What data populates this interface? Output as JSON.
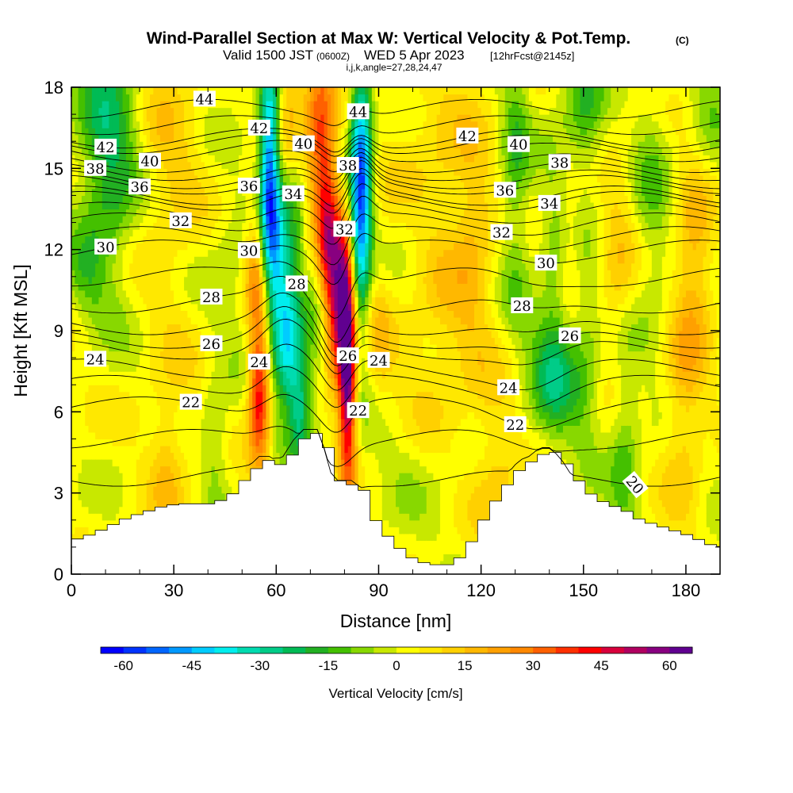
{
  "title": {
    "main": "Wind-Parallel Section at Max W: Vertical Velocity & Pot.Temp.",
    "copyright": "(C)",
    "valid": "Valid 1500 JST",
    "utc": "(0600Z)",
    "date": "WED 5 Apr 2023",
    "fcst": "[12hrFcst@2145z]",
    "indices": "i,j,k,angle=27,28,24,47"
  },
  "chart_data": {
    "type": "heatmap",
    "xlabel": "Distance [nm]",
    "ylabel": "Height [Kft MSL]",
    "xlim": [
      0,
      190
    ],
    "ylim": [
      0,
      18
    ],
    "x_ticks": [
      "0",
      "30",
      "60",
      "90",
      "120",
      "150",
      "180"
    ],
    "y_ticks": [
      "0",
      "3",
      "6",
      "9",
      "12",
      "15",
      "18"
    ],
    "colorbar": {
      "label": "Vertical Velocity [cm/s]",
      "range": [
        -65,
        65
      ],
      "step": 5,
      "tick_labels": [
        "-60",
        "-45",
        "-30",
        "-15",
        "0",
        "15",
        "30",
        "45",
        "60"
      ]
    },
    "fill_colors": [
      "#0000ff",
      "#0033ff",
      "#0066ff",
      "#0099ff",
      "#00ccff",
      "#00eeee",
      "#00dbb0",
      "#00cc88",
      "#00bb55",
      "#22b022",
      "#44c000",
      "#88d800",
      "#c8e800",
      "#ffff00",
      "#ffe800",
      "#ffd000",
      "#ffb800",
      "#ffa000",
      "#ff8800",
      "#ff6000",
      "#ff3000",
      "#ff0000",
      "#d8003c",
      "#b00060",
      "#880080",
      "#600090"
    ],
    "series": [
      {
        "name": "Vertical Velocity",
        "units": "cm/s"
      },
      {
        "name": "Pot.Temp.",
        "contour_labels": [
          "44",
          "42",
          "40",
          "38",
          "36",
          "34",
          "32",
          "30",
          "28",
          "26",
          "24",
          "22",
          "20"
        ]
      }
    ],
    "terrain_kft": {
      "x": [
        0,
        5,
        10,
        15,
        20,
        25,
        30,
        35,
        40,
        45,
        50,
        55,
        58,
        60,
        62,
        65,
        68,
        70,
        72,
        74,
        76,
        78,
        80,
        82,
        84,
        86,
        88,
        90,
        92,
        94,
        96,
        98,
        100,
        102,
        104,
        106,
        108,
        110,
        112,
        114,
        116,
        118,
        120,
        122,
        124,
        126,
        128,
        130,
        132,
        134,
        136,
        138,
        140,
        142,
        144,
        146,
        148,
        150,
        155,
        160,
        165,
        170,
        175,
        180,
        185,
        190
      ],
      "y": [
        1.3,
        1.5,
        1.8,
        2.1,
        2.3,
        2.5,
        2.6,
        2.6,
        2.6,
        2.9,
        3.6,
        4.2,
        4.2,
        4.0,
        4.2,
        4.8,
        5.2,
        5.2,
        5.2,
        4.5,
        3.6,
        3.3,
        3.3,
        3.3,
        3.1,
        2.5,
        1.8,
        1.5,
        1.3,
        1.0,
        0.8,
        0.6,
        0.5,
        0.4,
        0.35,
        0.35,
        0.35,
        0.35,
        0.6,
        0.9,
        1.3,
        1.8,
        2.2,
        2.6,
        3.0,
        3.3,
        3.6,
        3.9,
        4.1,
        4.2,
        4.4,
        4.5,
        4.5,
        4.3,
        4.0,
        3.6,
        3.3,
        3.0,
        2.6,
        2.4,
        2.0,
        1.8,
        1.6,
        1.4,
        1.1,
        1.0
      ]
    },
    "theta_levels": [
      {
        "value": "20",
        "y0": 3.6,
        "label_x": 165,
        "label_rot": 50
      },
      {
        "value": "21",
        "y0": 5.0
      },
      {
        "value": "22",
        "y0": 6.2,
        "label_x": 35,
        "label_x2": 84,
        "label_x3": 130
      },
      {
        "value": "23",
        "y0": 7.0
      },
      {
        "value": "24",
        "y0": 7.6,
        "label_x": 7,
        "label_x2": 55,
        "label_x3": 90,
        "label_x4": 128
      },
      {
        "value": "25",
        "y0": 8.3
      },
      {
        "value": "26",
        "y0": 8.7,
        "label_x": 41,
        "label_x2": 81,
        "label_x3": 146
      },
      {
        "value": "27",
        "y0": 9.2
      },
      {
        "value": "28",
        "y0": 10.0,
        "label_x": 41,
        "label_x2": 66,
        "label_x3": 132
      },
      {
        "value": "29",
        "y0": 11.0
      },
      {
        "value": "30",
        "y0": 12.0,
        "label_x": 10,
        "label_x2": 52,
        "label_x3": 139
      },
      {
        "value": "31",
        "y0": 12.5
      },
      {
        "value": "32",
        "y0": 13.0,
        "label_x": 32,
        "label_x2": 80,
        "label_x3": 126
      },
      {
        "value": "33",
        "y0": 13.4
      },
      {
        "value": "34",
        "y0": 13.8,
        "label_x": 65,
        "label_x2": 140
      },
      {
        "value": "35",
        "y0": 14.0
      },
      {
        "value": "36",
        "y0": 14.4,
        "label_x": 20,
        "label_x2": 52,
        "label_x3": 127
      },
      {
        "value": "37",
        "y0": 14.6
      },
      {
        "value": "38",
        "y0": 14.9,
        "label_x": 7,
        "label_x2": 81,
        "label_x3": 143
      },
      {
        "value": "39",
        "y0": 15.2
      },
      {
        "value": "40",
        "y0": 15.6,
        "label_x": 23,
        "label_x2": 68,
        "label_x3": 131
      },
      {
        "value": "41",
        "y0": 15.9
      },
      {
        "value": "42",
        "y0": 16.1,
        "label_x": 10,
        "label_x2": 55,
        "label_x3": 116
      },
      {
        "value": "43",
        "y0": 16.6
      },
      {
        "value": "44",
        "y0": 17.2,
        "label_x": 39,
        "label_x2": 84
      }
    ],
    "w_field": {
      "background": 2,
      "features": [
        {
          "x": 4,
          "z": 10.8,
          "sx": 4,
          "sz": 1.2,
          "w": -10
        },
        {
          "x": 10,
          "z": 14,
          "sx": 6,
          "sz": 4,
          "w": -12
        },
        {
          "x": 12,
          "z": 16.5,
          "sx": 7,
          "sz": 2.5,
          "w": -15
        },
        {
          "x": 5,
          "z": 7.5,
          "sx": 6,
          "sz": 3,
          "w": 3
        },
        {
          "x": 28,
          "z": 16,
          "sx": 7,
          "sz": 3,
          "w": 10
        },
        {
          "x": 30,
          "z": 7,
          "sx": 8,
          "sz": 5,
          "w": 5
        },
        {
          "x": 42,
          "z": 4.8,
          "sx": 3,
          "sz": 1.6,
          "w": -12
        },
        {
          "x": 28,
          "z": 4,
          "sx": 3,
          "sz": 1.5,
          "w": 10
        },
        {
          "x": 50,
          "z": 11,
          "sx": 8,
          "sz": 2,
          "w": -8
        },
        {
          "x": 55,
          "z": 6.8,
          "sx": 2.2,
          "sz": 2,
          "w": 45
        },
        {
          "x": 54,
          "z": 11.5,
          "sx": 2.5,
          "sz": 1.5,
          "w": 25
        },
        {
          "x": 58,
          "z": 15,
          "sx": 2,
          "sz": 3,
          "w": -55
        },
        {
          "x": 61,
          "z": 11,
          "sx": 2.5,
          "sz": 3,
          "w": -25
        },
        {
          "x": 64,
          "z": 8.5,
          "sx": 2.8,
          "sz": 1.6,
          "w": -30
        },
        {
          "x": 67,
          "z": 6.2,
          "sx": 2.4,
          "sz": 1.4,
          "w": -28
        },
        {
          "x": 66,
          "z": 14,
          "sx": 3,
          "sz": 2,
          "w": -18
        },
        {
          "x": 64,
          "z": 17,
          "sx": 3,
          "sz": 2,
          "w": 20
        },
        {
          "x": 73,
          "z": 10.5,
          "sx": 2.5,
          "sz": 3,
          "w": -22
        },
        {
          "x": 75,
          "z": 12,
          "sx": 2.5,
          "sz": 3,
          "w": 45
        },
        {
          "x": 72,
          "z": 16,
          "sx": 3,
          "sz": 3,
          "w": 30
        },
        {
          "x": 81,
          "z": 7.5,
          "sx": 1.8,
          "sz": 3,
          "w": 60
        },
        {
          "x": 79,
          "z": 10,
          "sx": 2.4,
          "sz": 2,
          "w": 40
        },
        {
          "x": 85,
          "z": 15,
          "sx": 2.2,
          "sz": 3,
          "w": -50
        },
        {
          "x": 84,
          "z": 11.5,
          "sx": 2.2,
          "sz": 3,
          "w": -20
        },
        {
          "x": 90,
          "z": 9,
          "sx": 3,
          "sz": 2,
          "w": 8
        },
        {
          "x": 100,
          "z": 12,
          "sx": 6,
          "sz": 3,
          "w": -8
        },
        {
          "x": 105,
          "z": 14,
          "sx": 10,
          "sz": 4,
          "w": 12
        },
        {
          "x": 105,
          "z": 8,
          "sx": 10,
          "sz": 2,
          "w": 8
        },
        {
          "x": 95,
          "z": 4,
          "sx": 10,
          "sz": 2,
          "w": -4
        },
        {
          "x": 125,
          "z": 4,
          "sx": 5,
          "sz": 2,
          "w": 12
        },
        {
          "x": 118,
          "z": 12,
          "sx": 4,
          "sz": 3,
          "w": 10
        },
        {
          "x": 130,
          "z": 15,
          "sx": 3,
          "sz": 4,
          "w": -15
        },
        {
          "x": 140,
          "z": 7.5,
          "sx": 5,
          "sz": 1.8,
          "w": -18
        },
        {
          "x": 142,
          "z": 11,
          "sx": 3,
          "sz": 4,
          "w": -10
        },
        {
          "x": 150,
          "z": 8,
          "sx": 4,
          "sz": 3,
          "w": -12
        },
        {
          "x": 146,
          "z": 12,
          "sx": 3,
          "sz": 2,
          "w": 12
        },
        {
          "x": 150,
          "z": 17,
          "sx": 4,
          "sz": 2,
          "w": -16
        },
        {
          "x": 160,
          "z": 11,
          "sx": 4,
          "sz": 3,
          "w": 12
        },
        {
          "x": 162,
          "z": 5,
          "sx": 3,
          "sz": 3,
          "w": -14
        },
        {
          "x": 170,
          "z": 14,
          "sx": 4,
          "sz": 4,
          "w": -10
        },
        {
          "x": 183,
          "z": 12,
          "sx": 4,
          "sz": 3,
          "w": 18
        },
        {
          "x": 179,
          "z": 6,
          "sx": 4,
          "sz": 3,
          "w": 12
        },
        {
          "x": 186,
          "z": 17,
          "sx": 4,
          "sz": 3,
          "w": -10
        }
      ]
    }
  }
}
